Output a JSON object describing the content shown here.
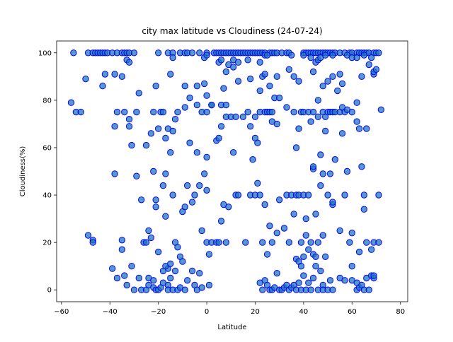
{
  "chart_data": {
    "type": "scatter",
    "title": "city max latitude vs Cloudiness (24-07-24)",
    "xlabel": "Latitude",
    "ylabel": "Cloudiness(%)",
    "xlim": [
      -62,
      83
    ],
    "ylim": [
      -5,
      105
    ],
    "xticks": [
      -60,
      -40,
      -20,
      0,
      20,
      40,
      60,
      80
    ],
    "yticks": [
      0,
      20,
      40,
      60,
      80,
      100
    ],
    "grid": false,
    "marker_color": "#1f77b4",
    "marker_edge_color": "#0000ff",
    "points": [
      [
        -55,
        100
      ],
      [
        -49,
        100
      ],
      [
        -47,
        100
      ],
      [
        -46,
        100
      ],
      [
        -45,
        100
      ],
      [
        -44,
        100
      ],
      [
        -43,
        100
      ],
      [
        -42,
        100
      ],
      [
        -41,
        100
      ],
      [
        -39,
        100
      ],
      [
        -37,
        100
      ],
      [
        -35,
        100
      ],
      [
        -34,
        100
      ],
      [
        -33,
        100
      ],
      [
        -32,
        100
      ],
      [
        -30,
        100
      ],
      [
        -20,
        100
      ],
      [
        -16,
        100
      ],
      [
        -14,
        100
      ],
      [
        -11,
        100
      ],
      [
        -9,
        100
      ],
      [
        -8,
        100
      ],
      [
        -6,
        100
      ],
      [
        -3,
        100
      ],
      [
        0,
        100
      ],
      [
        3,
        100
      ],
      [
        4,
        100
      ],
      [
        5,
        100
      ],
      [
        6,
        100
      ],
      [
        7,
        100
      ],
      [
        8,
        100
      ],
      [
        9,
        100
      ],
      [
        10,
        100
      ],
      [
        11,
        100
      ],
      [
        12,
        100
      ],
      [
        13,
        100
      ],
      [
        14,
        100
      ],
      [
        15,
        100
      ],
      [
        16,
        100
      ],
      [
        17,
        100
      ],
      [
        18,
        100
      ],
      [
        19,
        100
      ],
      [
        20,
        100
      ],
      [
        21,
        100
      ],
      [
        22,
        100
      ],
      [
        23,
        100
      ],
      [
        24,
        100
      ],
      [
        26,
        100
      ],
      [
        27,
        100
      ],
      [
        28,
        100
      ],
      [
        29,
        100
      ],
      [
        31,
        100
      ],
      [
        33,
        100
      ],
      [
        34,
        100
      ],
      [
        40,
        100
      ],
      [
        41,
        100
      ],
      [
        42,
        100
      ],
      [
        43,
        100
      ],
      [
        44,
        100
      ],
      [
        45,
        100
      ],
      [
        46,
        100
      ],
      [
        47,
        100
      ],
      [
        48,
        100
      ],
      [
        49,
        100
      ],
      [
        50,
        100
      ],
      [
        51,
        100
      ],
      [
        52,
        100
      ],
      [
        53,
        100
      ],
      [
        55,
        100
      ],
      [
        57,
        100
      ],
      [
        59,
        100
      ],
      [
        60,
        100
      ],
      [
        62,
        100
      ],
      [
        63,
        100
      ],
      [
        64,
        100
      ],
      [
        65,
        100
      ],
      [
        66,
        100
      ],
      [
        67,
        100
      ],
      [
        69,
        100
      ],
      [
        70,
        100
      ],
      [
        71,
        100
      ],
      [
        -33,
        97
      ],
      [
        -32,
        96
      ],
      [
        -14,
        98
      ],
      [
        -1,
        98
      ],
      [
        0,
        99
      ],
      [
        5,
        96
      ],
      [
        6,
        97
      ],
      [
        11,
        97
      ],
      [
        13,
        96
      ],
      [
        17,
        97
      ],
      [
        22,
        96
      ],
      [
        24,
        99
      ],
      [
        25,
        99
      ],
      [
        35,
        99
      ],
      [
        40,
        99
      ],
      [
        43,
        98
      ],
      [
        45,
        96
      ],
      [
        46,
        97
      ],
      [
        47,
        98
      ],
      [
        49,
        99
      ],
      [
        52,
        99
      ],
      [
        58,
        99
      ],
      [
        60,
        98
      ],
      [
        62,
        98
      ],
      [
        65,
        99
      ],
      [
        68,
        98
      ],
      [
        69,
        91
      ],
      [
        69,
        92
      ],
      [
        70,
        93
      ],
      [
        -50,
        89
      ],
      [
        -43,
        86
      ],
      [
        -42,
        91
      ],
      [
        -38,
        91
      ],
      [
        -35,
        90
      ],
      [
        -15,
        91
      ],
      [
        -9,
        86
      ],
      [
        -4,
        86
      ],
      [
        -1,
        87
      ],
      [
        0,
        82
      ],
      [
        7,
        85
      ],
      [
        8,
        92
      ],
      [
        9,
        95
      ],
      [
        11,
        94
      ],
      [
        13,
        88
      ],
      [
        18,
        89
      ],
      [
        22,
        84
      ],
      [
        23,
        90
      ],
      [
        24,
        91
      ],
      [
        26,
        86
      ],
      [
        28,
        81
      ],
      [
        29,
        90
      ],
      [
        34,
        93
      ],
      [
        36,
        90
      ],
      [
        38,
        88
      ],
      [
        44,
        92
      ],
      [
        48,
        86
      ],
      [
        50,
        88
      ],
      [
        52,
        90
      ],
      [
        55,
        91
      ],
      [
        56,
        87
      ],
      [
        64,
        90
      ],
      [
        67,
        95
      ],
      [
        -56,
        79
      ],
      [
        -54,
        75
      ],
      [
        -52,
        75
      ],
      [
        -38,
        69
      ],
      [
        -37,
        75
      ],
      [
        -34,
        75
      ],
      [
        -32,
        72
      ],
      [
        -32,
        69
      ],
      [
        -31,
        61
      ],
      [
        -29,
        75
      ],
      [
        -28,
        83
      ],
      [
        -25,
        61
      ],
      [
        -23,
        66
      ],
      [
        -22,
        75
      ],
      [
        -21,
        86
      ],
      [
        -20,
        68
      ],
      [
        -19,
        75
      ],
      [
        -18,
        75
      ],
      [
        -17,
        64
      ],
      [
        -16,
        68
      ],
      [
        -15,
        58
      ],
      [
        -14,
        67
      ],
      [
        -13,
        72
      ],
      [
        -12,
        75
      ],
      [
        -9,
        77
      ],
      [
        -7,
        81
      ],
      [
        -4,
        78
      ],
      [
        -2,
        75
      ],
      [
        0,
        75
      ],
      [
        2,
        78
      ],
      [
        2,
        78
      ],
      [
        4,
        63
      ],
      [
        5,
        64
      ],
      [
        6,
        69
      ],
      [
        6,
        78
      ],
      [
        8,
        73
      ],
      [
        8,
        78
      ],
      [
        10,
        73
      ],
      [
        12,
        73
      ],
      [
        11,
        58
      ],
      [
        15,
        73
      ],
      [
        17,
        75
      ],
      [
        18,
        69
      ],
      [
        19,
        55
      ],
      [
        20,
        73
      ],
      [
        20,
        64
      ],
      [
        21,
        62
      ],
      [
        22,
        75
      ],
      [
        24,
        75
      ],
      [
        25,
        75
      ],
      [
        26,
        75
      ],
      [
        27,
        71
      ],
      [
        27,
        75
      ],
      [
        29,
        70
      ],
      [
        30,
        81
      ],
      [
        33,
        77
      ],
      [
        36,
        75
      ],
      [
        37,
        60
      ],
      [
        38,
        68
      ],
      [
        39,
        75
      ],
      [
        40,
        75
      ],
      [
        42,
        75
      ],
      [
        43,
        71
      ],
      [
        44,
        51
      ],
      [
        44,
        52
      ],
      [
        44,
        75
      ],
      [
        46,
        80
      ],
      [
        46,
        73
      ],
      [
        47,
        57
      ],
      [
        48,
        75
      ],
      [
        49,
        73
      ],
      [
        49,
        67
      ],
      [
        50,
        75
      ],
      [
        51,
        75
      ],
      [
        52,
        75
      ],
      [
        53,
        75
      ],
      [
        54,
        84
      ],
      [
        55,
        75
      ],
      [
        56,
        66
      ],
      [
        56,
        77
      ],
      [
        57,
        75
      ],
      [
        58,
        76
      ],
      [
        60,
        75
      ],
      [
        62,
        79
      ],
      [
        62,
        71
      ],
      [
        63,
        68
      ],
      [
        66,
        68
      ],
      [
        72,
        76
      ],
      [
        -49,
        23
      ],
      [
        -47,
        21
      ],
      [
        -47,
        20
      ],
      [
        -38,
        49
      ],
      [
        -35,
        21
      ],
      [
        -35,
        17
      ],
      [
        -33,
        2
      ],
      [
        -31,
        10
      ],
      [
        -29,
        48
      ],
      [
        -27,
        38
      ],
      [
        -26,
        20
      ],
      [
        -25,
        20
      ],
      [
        -24,
        25
      ],
      [
        -24,
        5
      ],
      [
        -23,
        22
      ],
      [
        -22,
        50
      ],
      [
        -21,
        38
      ],
      [
        -21,
        35
      ],
      [
        -20,
        16
      ],
      [
        -18,
        44
      ],
      [
        -17,
        31
      ],
      [
        -17,
        49
      ],
      [
        -16,
        9
      ],
      [
        -15,
        5
      ],
      [
        -14,
        40
      ],
      [
        -13,
        20
      ],
      [
        -12,
        18
      ],
      [
        -11,
        14
      ],
      [
        -10,
        33
      ],
      [
        -9,
        35
      ],
      [
        -8,
        44
      ],
      [
        -7,
        62
      ],
      [
        -6,
        37
      ],
      [
        -5,
        40
      ],
      [
        -4,
        58
      ],
      [
        -3,
        44
      ],
      [
        -2,
        25
      ],
      [
        -1,
        49
      ],
      [
        0,
        56
      ],
      [
        0,
        42
      ],
      [
        0,
        20
      ],
      [
        1,
        15
      ],
      [
        2,
        20
      ],
      [
        4,
        20
      ],
      [
        5,
        20
      ],
      [
        6,
        29
      ],
      [
        7,
        36
      ],
      [
        8,
        20
      ],
      [
        9,
        35
      ],
      [
        12,
        40
      ],
      [
        13,
        40
      ],
      [
        16,
        20
      ],
      [
        18,
        40
      ],
      [
        20,
        40
      ],
      [
        21,
        45
      ],
      [
        22,
        40
      ],
      [
        23,
        20
      ],
      [
        24,
        36
      ],
      [
        25,
        15
      ],
      [
        26,
        27
      ],
      [
        27,
        20
      ],
      [
        29,
        24
      ],
      [
        30,
        38
      ],
      [
        32,
        26
      ],
      [
        33,
        40
      ],
      [
        34,
        20
      ],
      [
        35,
        40
      ],
      [
        36,
        32
      ],
      [
        37,
        40
      ],
      [
        38,
        40
      ],
      [
        39,
        20
      ],
      [
        40,
        40
      ],
      [
        41,
        23
      ],
      [
        42,
        40
      ],
      [
        41,
        30
      ],
      [
        43,
        20
      ],
      [
        44,
        15
      ],
      [
        45,
        32
      ],
      [
        46,
        20
      ],
      [
        47,
        44
      ],
      [
        48,
        49
      ],
      [
        48,
        23
      ],
      [
        50,
        40
      ],
      [
        51,
        49
      ],
      [
        52,
        36
      ],
      [
        52,
        37
      ],
      [
        53,
        55
      ],
      [
        55,
        25
      ],
      [
        57,
        40
      ],
      [
        58,
        50
      ],
      [
        59,
        20
      ],
      [
        60,
        24
      ],
      [
        63,
        16
      ],
      [
        64,
        52
      ],
      [
        65,
        34
      ],
      [
        65,
        40
      ],
      [
        66,
        20
      ],
      [
        68,
        17
      ],
      [
        69,
        20
      ],
      [
        71,
        20
      ],
      [
        71,
        40
      ],
      [
        -39,
        9
      ],
      [
        -37,
        5
      ],
      [
        -34,
        6
      ],
      [
        -30,
        0
      ],
      [
        -28,
        5
      ],
      [
        -27,
        0
      ],
      [
        -25,
        0
      ],
      [
        -24,
        2
      ],
      [
        -22,
        4
      ],
      [
        -22,
        1
      ],
      [
        -21,
        0
      ],
      [
        -20,
        0
      ],
      [
        -19,
        1
      ],
      [
        -18,
        8
      ],
      [
        -18,
        3
      ],
      [
        -17,
        10
      ],
      [
        -16,
        2
      ],
      [
        -16,
        0
      ],
      [
        -15,
        11
      ],
      [
        -14,
        0
      ],
      [
        -13,
        8
      ],
      [
        -12,
        0
      ],
      [
        -11,
        1
      ],
      [
        -10,
        12
      ],
      [
        -9,
        0
      ],
      [
        -8,
        4
      ],
      [
        -6,
        8
      ],
      [
        -5,
        2
      ],
      [
        -4,
        0
      ],
      [
        -3,
        7
      ],
      [
        -2,
        1
      ],
      [
        1,
        2
      ],
      [
        22,
        3
      ],
      [
        23,
        0
      ],
      [
        24,
        4
      ],
      [
        25,
        2
      ],
      [
        26,
        0
      ],
      [
        27,
        0
      ],
      [
        28,
        1
      ],
      [
        29,
        7
      ],
      [
        30,
        0
      ],
      [
        31,
        0
      ],
      [
        32,
        1
      ],
      [
        33,
        2
      ],
      [
        34,
        0
      ],
      [
        35,
        1
      ],
      [
        36,
        2
      ],
      [
        37,
        0
      ],
      [
        37,
        13
      ],
      [
        38,
        3
      ],
      [
        38,
        12
      ],
      [
        39,
        0
      ],
      [
        39,
        10
      ],
      [
        40,
        6
      ],
      [
        40,
        14
      ],
      [
        41,
        0
      ],
      [
        42,
        3
      ],
      [
        42,
        17
      ],
      [
        43,
        0
      ],
      [
        44,
        5
      ],
      [
        45,
        10
      ],
      [
        45,
        14
      ],
      [
        46,
        0
      ],
      [
        47,
        8
      ],
      [
        48,
        2
      ],
      [
        48,
        0
      ],
      [
        49,
        14
      ],
      [
        50,
        0
      ],
      [
        51,
        4
      ],
      [
        52,
        0
      ],
      [
        55,
        5
      ],
      [
        57,
        4
      ],
      [
        60,
        10
      ],
      [
        60,
        4
      ],
      [
        62,
        0
      ],
      [
        62,
        3
      ],
      [
        63,
        1
      ],
      [
        64,
        2
      ],
      [
        65,
        0
      ],
      [
        66,
        5
      ],
      [
        67,
        0
      ],
      [
        68,
        6
      ],
      [
        69,
        5
      ],
      [
        69,
        6
      ]
    ]
  }
}
